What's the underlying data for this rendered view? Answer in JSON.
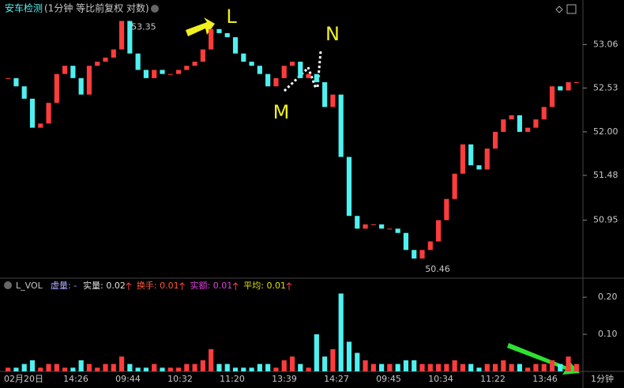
{
  "chart_data": {
    "type": "candlestick-close",
    "title": "安车检测",
    "subtitle": "(1分钟 等比前复权 对数)",
    "log_scale": true,
    "up_color": "#ff3c3c",
    "down_color": "#4ff0f0",
    "ylim": [
      50.29,
      53.56
    ],
    "yticks": [
      53.06,
      52.53,
      {
        "value": 52,
        "label": "52.00"
      },
      51.48,
      50.95
    ],
    "values": [
      52.65,
      52.55,
      52.4,
      52.05,
      52.1,
      52.35,
      52.7,
      52.8,
      52.65,
      52.45,
      52.8,
      52.85,
      52.9,
      53.0,
      53.35,
      52.95,
      52.75,
      52.65,
      52.75,
      52.7,
      52.7,
      52.75,
      52.8,
      52.85,
      53.0,
      53.25,
      53.2,
      53.15,
      52.95,
      52.85,
      52.8,
      52.7,
      52.55,
      52.65,
      52.8,
      52.85,
      52.65,
      52.7,
      52.6,
      52.3,
      52.45,
      51.7,
      51.0,
      50.85,
      50.9,
      50.9,
      50.85,
      50.85,
      50.8,
      50.6,
      50.5,
      50.6,
      50.7,
      50.95,
      51.2,
      51.5,
      51.85,
      51.6,
      51.55,
      51.8,
      52.0,
      52.15,
      52.2,
      52.0,
      52.05,
      52.15,
      52.3,
      52.55,
      52.5,
      52.6,
      52.6
    ],
    "annotations": [
      "53.35",
      "50.46",
      "L",
      "M",
      "N"
    ],
    "xticks": [
      "02月20日",
      "14:26",
      "09:44",
      "10:32",
      "11:20",
      "13:39",
      "14:27",
      "09:45",
      "10:34",
      "11:22",
      "13:46"
    ],
    "period_label": "1分钟",
    "volume": {
      "indicator": "L_VOL",
      "legend": [
        {
          "text": "虚量: -",
          "color": "#a8a8ff"
        },
        {
          "text": "实量: 0.02",
          "color": "#e0e0e0"
        },
        {
          "text": "换手: 0.01",
          "color": "#ff5a3c"
        },
        {
          "text": "实额: 0.01",
          "color": "#e040e0"
        },
        {
          "text": "平均: 0.01",
          "color": "#e0e000"
        }
      ],
      "ylim": [
        0,
        0.245
      ],
      "yticks": [
        {
          "value": 0.2,
          "label": "0.20"
        },
        {
          "value": 0.1,
          "label": "0.10"
        }
      ],
      "values": [
        0.01,
        0.01,
        0.02,
        0.03,
        0.01,
        0.02,
        0.02,
        0.01,
        0.01,
        0.03,
        0.02,
        0.01,
        0.02,
        0.02,
        0.04,
        0.02,
        0.01,
        0.01,
        0.02,
        0.01,
        0.01,
        0.01,
        0.02,
        0.02,
        0.03,
        0.06,
        0.02,
        0.02,
        0.01,
        0.01,
        0.01,
        0.02,
        0.02,
        0.01,
        0.03,
        0.04,
        0.02,
        0.01,
        0.1,
        0.04,
        0.06,
        0.21,
        0.08,
        0.05,
        0.03,
        0.02,
        0.02,
        0.02,
        0.02,
        0.03,
        0.03,
        0.02,
        0.02,
        0.02,
        0.02,
        0.03,
        0.02,
        0.02,
        0.01,
        0.02,
        0.02,
        0.03,
        0.02,
        0.02,
        0.01,
        0.02,
        0.02,
        0.03,
        0.02,
        0.04,
        0.02
      ]
    }
  }
}
